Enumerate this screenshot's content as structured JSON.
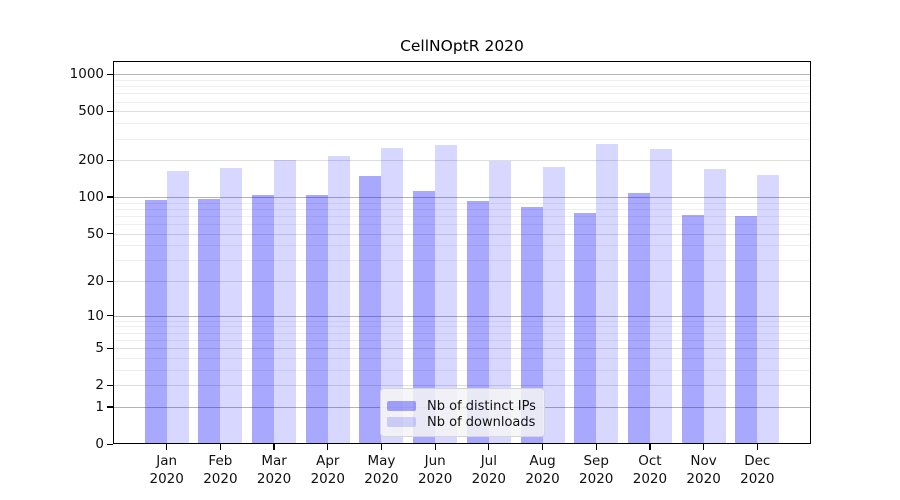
{
  "title": "CellNOptR 2020",
  "chart_data": {
    "type": "bar",
    "title": "CellNOptR 2020",
    "categories": [
      "Jan",
      "Feb",
      "Mar",
      "Apr",
      "May",
      "Jun",
      "Jul",
      "Aug",
      "Sep",
      "Oct",
      "Nov",
      "Dec"
    ],
    "year": "2020",
    "series": [
      {
        "name": "Nb of distinct IPs",
        "fill": "rgba(0,0,255,0.34)",
        "hex": "#a9a9f8",
        "values": [
          95,
          97,
          104,
          104,
          148,
          112,
          92,
          82,
          74,
          107,
          71,
          70
        ]
      },
      {
        "name": "Nb of downloads",
        "fill": "rgba(0,0,255,0.155)",
        "hex": "#d8d8f8",
        "values": [
          162,
          172,
          199,
          218,
          252,
          264,
          196,
          175,
          272,
          245,
          169,
          150
        ]
      }
    ],
    "y_ticks": [
      0,
      1,
      2,
      5,
      10,
      20,
      50,
      100,
      200,
      500,
      1000
    ],
    "scale": "log1p",
    "ylim": [
      0,
      1280
    ],
    "xlabel": "",
    "ylabel": "",
    "grid": "horizontal-both",
    "legend_position": "bottom-center"
  },
  "colors": {
    "grid_major": "#b3b3b3",
    "grid_mid": "#dedede",
    "grid_minor": "#efefef",
    "axis": "#000000",
    "legend_bg": "#f5f5f5",
    "legend_border": "#d5d5d5"
  }
}
